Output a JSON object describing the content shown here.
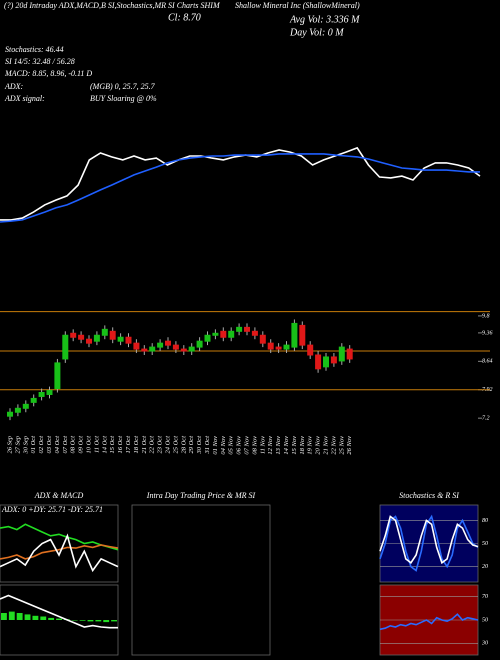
{
  "header": {
    "title": "(?) 20d Intraday ADX,MACD,B SI,Stochastics,MR SI Charts SHIM",
    "company": "Shallow Mineral Inc (ShallowMineral)",
    "close": "Cl: 8.70",
    "avg_vol": "Avg Vol: 3.336 M",
    "day_vol": "Day Vol: 0 M",
    "stochastics": "Stochastics: 46.44",
    "si": "SI 14/5: 32.48 / 56.28",
    "macd": "MACD: 8.85, 8.96, -0.11 D",
    "adx_label": "ADX:",
    "adx_value": "(MGB) 0, 25.7, 25.7",
    "adx_signal_label": "ADX  signal:",
    "adx_signal": "BUY Sloaring @ 0%"
  },
  "chart_data": [
    {
      "type": "line",
      "ylim": [
        0,
        100
      ],
      "series": [
        {
          "color": "#ffffff",
          "values": [
            26.7,
            26.7,
            27.3,
            29.3,
            31.7,
            33.3,
            34.7,
            38.3,
            46.7,
            49,
            47.7,
            46.7,
            48,
            46.7,
            47.3,
            45,
            46.7,
            48,
            48,
            47.3,
            46.7,
            47.7,
            48.3,
            47.7,
            49,
            50,
            49.3,
            48,
            45,
            46.7,
            48,
            49.3,
            50.7,
            45,
            41,
            40.7,
            41.3,
            40,
            44,
            45.7,
            45.7,
            45,
            44,
            41.3
          ]
        },
        {
          "color": "#1f5fff",
          "values": [
            26,
            26.3,
            26.7,
            28,
            29.3,
            30.7,
            31.7,
            33.3,
            35,
            36.7,
            38.3,
            40,
            41.7,
            43,
            44.3,
            45.7,
            46.7,
            47.3,
            47.7,
            48,
            48,
            48.3,
            48.3,
            48.3,
            48.3,
            48.7,
            48.7,
            48.7,
            48.7,
            48.7,
            48.3,
            48,
            47.7,
            47,
            46,
            45,
            44,
            43.7,
            43.3,
            43.3,
            43.3,
            43,
            42.7,
            42.7
          ]
        }
      ]
    },
    {
      "type": "candlestick",
      "ylim": [
        6.9,
        9.94
      ],
      "yticks": [
        {
          "value": 9.79,
          "label": "9.8"
        },
        9.36,
        8.64,
        7.92,
        7.2
      ],
      "levels": [
        9.9,
        8.9,
        7.92
      ],
      "level_color": "#c87d0a",
      "up_color": "#18c018",
      "down_color": "#e01818",
      "categories": [
        "26 Sep",
        "27 Sep",
        "30 Sep",
        "01 Oct",
        "02 Oct",
        "03 Oct",
        "04 Oct",
        "07 Oct",
        "08 Oct",
        "09 Oct",
        "10 Oct",
        "11 Oct",
        "14 Oct",
        "15 Oct",
        "16 Oct",
        "17 Oct",
        "18 Oct",
        "21 Oct",
        "22 Oct",
        "23 Oct",
        "24 Oct",
        "25 Oct",
        "28 Oct",
        "29 Oct",
        "30 Oct",
        "31 Oct",
        "01 Nov",
        "04 Nov",
        "05 Nov",
        "06 Nov",
        "07 Nov",
        "08 Nov",
        "11 Nov",
        "12 Nov",
        "13 Nov",
        "14 Nov",
        "15 Nov",
        "18 Nov",
        "19 Nov",
        "20 Nov",
        "21 Nov",
        "22 Nov",
        "25 Nov",
        "26 Nov"
      ],
      "open": [
        7.25,
        7.35,
        7.45,
        7.6,
        7.75,
        7.8,
        7.95,
        8.7,
        9.35,
        9.3,
        9.2,
        9.15,
        9.3,
        9.4,
        9.15,
        9.25,
        9.1,
        8.95,
        8.9,
        9.0,
        9.15,
        9.05,
        8.95,
        8.9,
        9.0,
        9.15,
        9.3,
        9.4,
        9.25,
        9.4,
        9.5,
        9.4,
        9.3,
        9.1,
        9.0,
        8.95,
        9.0,
        9.55,
        9.05,
        8.8,
        8.5,
        8.75,
        8.65,
        8.95
      ],
      "high": [
        7.45,
        7.55,
        7.65,
        7.8,
        7.95,
        8.0,
        8.7,
        9.4,
        9.45,
        9.4,
        9.3,
        9.4,
        9.55,
        9.5,
        9.35,
        9.35,
        9.2,
        9.05,
        9.1,
        9.2,
        9.25,
        9.15,
        9.05,
        9.1,
        9.25,
        9.4,
        9.45,
        9.5,
        9.5,
        9.6,
        9.6,
        9.5,
        9.4,
        9.2,
        9.1,
        9.15,
        9.7,
        9.65,
        9.15,
        8.9,
        8.85,
        8.85,
        9.1,
        9.05
      ],
      "low": [
        7.15,
        7.25,
        7.35,
        7.5,
        7.65,
        7.7,
        7.85,
        8.6,
        9.15,
        9.1,
        9.0,
        9.05,
        9.2,
        9.1,
        9.05,
        9.0,
        8.85,
        8.8,
        8.8,
        8.9,
        8.95,
        8.85,
        8.8,
        8.8,
        8.9,
        9.05,
        9.2,
        9.15,
        9.15,
        9.3,
        9.3,
        9.2,
        9.0,
        8.85,
        8.85,
        8.85,
        8.9,
        8.95,
        8.7,
        8.35,
        8.4,
        8.5,
        8.55,
        8.6
      ],
      "close": [
        7.35,
        7.45,
        7.55,
        7.7,
        7.85,
        7.9,
        8.6,
        9.3,
        9.25,
        9.2,
        9.1,
        9.3,
        9.45,
        9.2,
        9.25,
        9.1,
        8.95,
        8.9,
        9.0,
        9.1,
        9.05,
        8.95,
        8.9,
        9.0,
        9.15,
        9.3,
        9.35,
        9.25,
        9.4,
        9.5,
        9.4,
        9.3,
        9.1,
        8.95,
        8.95,
        9.05,
        9.6,
        9.05,
        8.8,
        8.45,
        8.75,
        8.6,
        9.0,
        8.7
      ]
    },
    {
      "type": "line",
      "title": "ADX  & MACD",
      "subtitle": "ADX: 0  +DY: 25.71  -DY: 25.71",
      "ylim": [
        0,
        100
      ],
      "series": [
        {
          "color": "#22dd22",
          "values": [
            70,
            72,
            68,
            75,
            70,
            65,
            60,
            62,
            58,
            55,
            50,
            52,
            48,
            45,
            42
          ]
        },
        {
          "color": "#e07020",
          "values": [
            30,
            32,
            35,
            30,
            33,
            38,
            40,
            42,
            45,
            44,
            47,
            45,
            48,
            46,
            44
          ]
        },
        {
          "color": "#ffffff",
          "values": [
            20,
            25,
            30,
            22,
            40,
            50,
            55,
            35,
            60,
            20,
            40,
            15,
            30,
            25,
            20
          ]
        }
      ]
    },
    {
      "type": "bar",
      "ylim": [
        -0.5,
        0.5
      ],
      "color": "#22dd22",
      "values": [
        0.1,
        0.12,
        0.1,
        0.08,
        0.06,
        0.05,
        0.03,
        0.02,
        0.01,
        0.0,
        -0.01,
        -0.02,
        -0.02,
        -0.03,
        -0.02
      ],
      "series": [
        {
          "color": "#ffffff",
          "values": [
            0.3,
            0.35,
            0.3,
            0.25,
            0.2,
            0.15,
            0.1,
            0.05,
            0.0,
            -0.05,
            -0.1,
            -0.08,
            -0.1,
            -0.11,
            -0.11
          ]
        }
      ]
    },
    {
      "type": "line",
      "title": "Intra  Day Trading Price  & MR                    SI",
      "ylim": [
        0,
        100
      ],
      "series": []
    },
    {
      "type": "line",
      "title": "Stochastics & R                  SI",
      "ylim": [
        0,
        100
      ],
      "yticks": [
        20,
        50,
        80
      ],
      "background": "#00005e",
      "series": [
        {
          "color": "#2a6bff",
          "values": [
            30,
            50,
            80,
            85,
            70,
            40,
            20,
            15,
            40,
            75,
            85,
            60,
            30,
            20,
            35,
            70,
            80,
            65,
            50,
            45
          ]
        },
        {
          "color": "#ffffff",
          "values": [
            40,
            60,
            85,
            80,
            55,
            30,
            25,
            35,
            60,
            80,
            75,
            45,
            25,
            30,
            55,
            75,
            70,
            55,
            48,
            46
          ]
        }
      ]
    },
    {
      "type": "line",
      "ylim": [
        20,
        80
      ],
      "yticks": [
        30,
        50,
        70
      ],
      "background": "#8b0000",
      "series": [
        {
          "color": "#2a6bff",
          "values": [
            42,
            43,
            45,
            44,
            46,
            45,
            47,
            46,
            48,
            50,
            47,
            52,
            50,
            49,
            51,
            55,
            50,
            52,
            51,
            50
          ]
        }
      ]
    }
  ]
}
